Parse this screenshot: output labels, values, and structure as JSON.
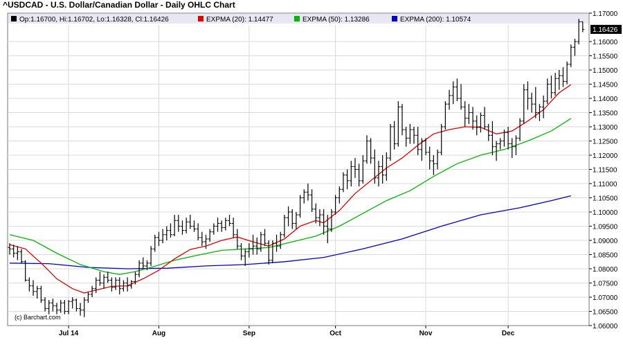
{
  "chart_data": {
    "type": "ohlc",
    "title": "^USDCAD - U.S. Dollar/Canadian Dollar - Daily OHLC Chart",
    "legend": {
      "ohlc": "Op:1.16700, Hi:1.16702, Lo:1.16328, Cl:1.16426",
      "ema20": "EXPMA (20): 1.14477",
      "ema50": "EXPMA (50): 1.13286",
      "ema200": "EXPMA (200): 1.10574"
    },
    "last_price_label": "1.16426",
    "watermark": "(c) Barchart.com",
    "ylim": [
      1.06,
      1.17
    ],
    "y_ticks": [
      "1.06000",
      "1.06500",
      "1.07000",
      "1.07500",
      "1.08000",
      "1.08500",
      "1.09000",
      "1.09500",
      "1.10000",
      "1.10500",
      "1.11000",
      "1.11500",
      "1.12000",
      "1.12500",
      "1.13000",
      "1.13500",
      "1.14000",
      "1.14500",
      "1.15000",
      "1.15500",
      "1.16000",
      "1.17000"
    ],
    "month_labels": [
      {
        "label": "Jul 14",
        "index": 15
      },
      {
        "label": "Aug",
        "index": 38
      },
      {
        "label": "Sep",
        "index": 61
      },
      {
        "label": "Oct",
        "index": 83
      },
      {
        "label": "Nov",
        "index": 106
      },
      {
        "label": "Dec",
        "index": 127
      }
    ],
    "bars": [
      [
        1.0875,
        1.089,
        1.085,
        1.087
      ],
      [
        1.087,
        1.0885,
        1.084,
        1.0855
      ],
      [
        1.0855,
        1.088,
        1.083,
        1.086
      ],
      [
        1.086,
        1.087,
        1.082,
        1.0825
      ],
      [
        1.0825,
        1.083,
        1.0755,
        1.076
      ],
      [
        1.076,
        1.077,
        1.072,
        1.074
      ],
      [
        1.074,
        1.076,
        1.0705,
        1.072
      ],
      [
        1.072,
        1.074,
        1.0695,
        1.073
      ],
      [
        1.073,
        1.074,
        1.068,
        1.069
      ],
      [
        1.069,
        1.07,
        1.065,
        1.066
      ],
      [
        1.066,
        1.069,
        1.064,
        1.068
      ],
      [
        1.068,
        1.0695,
        1.065,
        1.067
      ],
      [
        1.067,
        1.068,
        1.064,
        1.0655
      ],
      [
        1.0655,
        1.069,
        1.0645,
        1.068
      ],
      [
        1.068,
        1.069,
        1.064,
        1.065
      ],
      [
        1.065,
        1.069,
        1.064,
        1.0685
      ],
      [
        1.0685,
        1.07,
        1.066,
        1.069
      ],
      [
        1.069,
        1.0695,
        1.065,
        1.066
      ],
      [
        1.066,
        1.068,
        1.0635,
        1.0655
      ],
      [
        1.0655,
        1.07,
        1.063,
        1.069
      ],
      [
        1.069,
        1.072,
        1.068,
        1.071
      ],
      [
        1.071,
        1.074,
        1.07,
        1.073
      ],
      [
        1.073,
        1.077,
        1.0715,
        1.076
      ],
      [
        1.076,
        1.079,
        1.074,
        1.075
      ],
      [
        1.075,
        1.078,
        1.073,
        1.077
      ],
      [
        1.077,
        1.079,
        1.075,
        1.076
      ],
      [
        1.076,
        1.077,
        1.072,
        1.0735
      ],
      [
        1.0735,
        1.077,
        1.0725,
        1.076
      ],
      [
        1.076,
        1.077,
        1.071,
        1.073
      ],
      [
        1.073,
        1.076,
        1.072,
        1.075
      ],
      [
        1.075,
        1.077,
        1.072,
        1.074
      ],
      [
        1.074,
        1.076,
        1.073,
        1.0755
      ],
      [
        1.0755,
        1.079,
        1.0745,
        1.078
      ],
      [
        1.078,
        1.083,
        1.077,
        1.082
      ],
      [
        1.082,
        1.084,
        1.08,
        1.081
      ],
      [
        1.081,
        1.083,
        1.0795,
        1.082
      ],
      [
        1.082,
        1.088,
        1.081,
        1.087
      ],
      [
        1.087,
        1.092,
        1.086,
        1.091
      ],
      [
        1.091,
        1.093,
        1.088,
        1.09
      ],
      [
        1.09,
        1.094,
        1.089,
        1.092
      ],
      [
        1.092,
        1.095,
        1.09,
        1.0935
      ],
      [
        1.0935,
        1.096,
        1.091,
        1.092
      ],
      [
        1.092,
        1.099,
        1.0915,
        1.097
      ],
      [
        1.097,
        1.099,
        1.093,
        1.095
      ],
      [
        1.095,
        1.097,
        1.092,
        1.0935
      ],
      [
        1.0935,
        1.098,
        1.0925,
        1.0965
      ],
      [
        1.0965,
        1.099,
        1.094,
        1.095
      ],
      [
        1.095,
        1.097,
        1.093,
        1.094
      ],
      [
        1.094,
        1.096,
        1.09,
        1.091
      ],
      [
        1.091,
        1.093,
        1.088,
        1.0895
      ],
      [
        1.0895,
        1.092,
        1.087,
        1.0905
      ],
      [
        1.0905,
        1.094,
        1.0895,
        1.093
      ],
      [
        1.093,
        1.096,
        1.092,
        1.095
      ],
      [
        1.095,
        1.098,
        1.093,
        1.096
      ],
      [
        1.096,
        1.097,
        1.093,
        1.0945
      ],
      [
        1.0945,
        1.098,
        1.0935,
        1.097
      ],
      [
        1.097,
        1.099,
        1.095,
        1.096
      ],
      [
        1.096,
        1.098,
        1.091,
        1.092
      ],
      [
        1.092,
        1.094,
        1.087,
        1.088
      ],
      [
        1.088,
        1.089,
        1.083,
        1.0845
      ],
      [
        1.0845,
        1.087,
        1.081,
        1.086
      ],
      [
        1.086,
        1.089,
        1.084,
        1.087
      ],
      [
        1.087,
        1.092,
        1.085,
        1.088
      ],
      [
        1.088,
        1.091,
        1.085,
        1.087
      ],
      [
        1.087,
        1.093,
        1.086,
        1.092
      ],
      [
        1.092,
        1.094,
        1.088,
        1.089
      ],
      [
        1.089,
        1.09,
        1.0815,
        1.083
      ],
      [
        1.083,
        1.09,
        1.082,
        1.089
      ],
      [
        1.089,
        1.092,
        1.086,
        1.088
      ],
      [
        1.088,
        1.093,
        1.087,
        1.092
      ],
      [
        1.092,
        1.099,
        1.091,
        1.098
      ],
      [
        1.098,
        1.102,
        1.095,
        1.1
      ],
      [
        1.1,
        1.101,
        1.094,
        1.096
      ],
      [
        1.096,
        1.1,
        1.094,
        1.099
      ],
      [
        1.099,
        1.106,
        1.098,
        1.105
      ],
      [
        1.105,
        1.108,
        1.103,
        1.107
      ],
      [
        1.107,
        1.11,
        1.104,
        1.106
      ],
      [
        1.106,
        1.108,
        1.1,
        1.101
      ],
      [
        1.101,
        1.103,
        1.096,
        1.098
      ],
      [
        1.098,
        1.101,
        1.095,
        1.099
      ],
      [
        1.099,
        1.101,
        1.092,
        1.095
      ],
      [
        1.095,
        1.099,
        1.089,
        1.094
      ],
      [
        1.094,
        1.101,
        1.093,
        1.1
      ],
      [
        1.1,
        1.106,
        1.099,
        1.105
      ],
      [
        1.105,
        1.109,
        1.103,
        1.108
      ],
      [
        1.108,
        1.114,
        1.107,
        1.113
      ],
      [
        1.113,
        1.115,
        1.108,
        1.111
      ],
      [
        1.111,
        1.118,
        1.109,
        1.116
      ],
      [
        1.116,
        1.119,
        1.112,
        1.115
      ],
      [
        1.115,
        1.117,
        1.109,
        1.111
      ],
      [
        1.111,
        1.12,
        1.11,
        1.118
      ],
      [
        1.118,
        1.127,
        1.117,
        1.125
      ],
      [
        1.125,
        1.126,
        1.117,
        1.119
      ],
      [
        1.119,
        1.122,
        1.11,
        1.112
      ],
      [
        1.112,
        1.118,
        1.109,
        1.116
      ],
      [
        1.116,
        1.12,
        1.11,
        1.113
      ],
      [
        1.113,
        1.121,
        1.111,
        1.119
      ],
      [
        1.119,
        1.131,
        1.118,
        1.13
      ],
      [
        1.13,
        1.132,
        1.122,
        1.124
      ],
      [
        1.124,
        1.139,
        1.123,
        1.137
      ],
      [
        1.137,
        1.138,
        1.127,
        1.129
      ],
      [
        1.129,
        1.13,
        1.123,
        1.126
      ],
      [
        1.126,
        1.131,
        1.124,
        1.129
      ],
      [
        1.129,
        1.13,
        1.124,
        1.127
      ],
      [
        1.127,
        1.13,
        1.12,
        1.122
      ],
      [
        1.122,
        1.126,
        1.118,
        1.125
      ],
      [
        1.125,
        1.126,
        1.12,
        1.121
      ],
      [
        1.121,
        1.123,
        1.115,
        1.118
      ],
      [
        1.118,
        1.12,
        1.113,
        1.117
      ],
      [
        1.117,
        1.122,
        1.115,
        1.121
      ],
      [
        1.121,
        1.131,
        1.12,
        1.13
      ],
      [
        1.13,
        1.139,
        1.129,
        1.138
      ],
      [
        1.138,
        1.143,
        1.136,
        1.141
      ],
      [
        1.141,
        1.146,
        1.138,
        1.144
      ],
      [
        1.144,
        1.147,
        1.139,
        1.14
      ],
      [
        1.14,
        1.145,
        1.136,
        1.137
      ],
      [
        1.137,
        1.139,
        1.13,
        1.133
      ],
      [
        1.133,
        1.138,
        1.131,
        1.135
      ],
      [
        1.135,
        1.137,
        1.129,
        1.132
      ],
      [
        1.132,
        1.134,
        1.127,
        1.13
      ],
      [
        1.13,
        1.135,
        1.128,
        1.134
      ],
      [
        1.134,
        1.137,
        1.129,
        1.13
      ],
      [
        1.13,
        1.131,
        1.125,
        1.127
      ],
      [
        1.127,
        1.132,
        1.12,
        1.123
      ],
      [
        1.123,
        1.125,
        1.118,
        1.124
      ],
      [
        1.124,
        1.126,
        1.122,
        1.125
      ],
      [
        1.125,
        1.129,
        1.123,
        1.128
      ],
      [
        1.128,
        1.13,
        1.122,
        1.124
      ],
      [
        1.124,
        1.126,
        1.119,
        1.123
      ],
      [
        1.123,
        1.127,
        1.12,
        1.126
      ],
      [
        1.126,
        1.133,
        1.125,
        1.132
      ],
      [
        1.132,
        1.145,
        1.131,
        1.143
      ],
      [
        1.143,
        1.146,
        1.136,
        1.14
      ],
      [
        1.14,
        1.142,
        1.135,
        1.138
      ],
      [
        1.138,
        1.144,
        1.133,
        1.135
      ],
      [
        1.135,
        1.138,
        1.132,
        1.137
      ],
      [
        1.137,
        1.141,
        1.133,
        1.139
      ],
      [
        1.139,
        1.147,
        1.138,
        1.145
      ],
      [
        1.145,
        1.148,
        1.14,
        1.142
      ],
      [
        1.142,
        1.149,
        1.141,
        1.147
      ],
      [
        1.147,
        1.15,
        1.143,
        1.148
      ],
      [
        1.148,
        1.151,
        1.144,
        1.146
      ],
      [
        1.146,
        1.153,
        1.145,
        1.152
      ],
      [
        1.152,
        1.159,
        1.151,
        1.158
      ],
      [
        1.158,
        1.161,
        1.155,
        1.16
      ],
      [
        1.16,
        1.168,
        1.159,
        1.167
      ],
      [
        1.167,
        1.167,
        1.1633,
        1.1643
      ]
    ],
    "ema20": [
      [
        0,
        1.0885
      ],
      [
        4,
        1.087
      ],
      [
        8,
        1.082
      ],
      [
        12,
        1.0765
      ],
      [
        16,
        1.073
      ],
      [
        19,
        1.0715
      ],
      [
        22,
        1.0725
      ],
      [
        26,
        1.0738
      ],
      [
        30,
        1.074
      ],
      [
        34,
        1.0765
      ],
      [
        38,
        1.0795
      ],
      [
        42,
        1.0835
      ],
      [
        46,
        1.0868
      ],
      [
        50,
        1.088
      ],
      [
        54,
        1.09
      ],
      [
        58,
        1.0912
      ],
      [
        62,
        1.0895
      ],
      [
        66,
        1.088
      ],
      [
        70,
        1.0905
      ],
      [
        74,
        1.095
      ],
      [
        78,
        1.097
      ],
      [
        80,
        1.0962
      ],
      [
        84,
        1.1005
      ],
      [
        88,
        1.1065
      ],
      [
        92,
        1.111
      ],
      [
        96,
        1.1155
      ],
      [
        100,
        1.119
      ],
      [
        104,
        1.1235
      ],
      [
        108,
        1.1275
      ],
      [
        112,
        1.129
      ],
      [
        116,
        1.13
      ],
      [
        120,
        1.1298
      ],
      [
        124,
        1.1275
      ],
      [
        128,
        1.1285
      ],
      [
        132,
        1.132
      ],
      [
        136,
        1.136
      ],
      [
        140,
        1.142
      ],
      [
        143,
        1.1448
      ]
    ],
    "ema50": [
      [
        0,
        1.092
      ],
      [
        6,
        1.09
      ],
      [
        12,
        1.0855
      ],
      [
        18,
        1.0815
      ],
      [
        24,
        1.079
      ],
      [
        28,
        1.078
      ],
      [
        32,
        1.079
      ],
      [
        36,
        1.0805
      ],
      [
        42,
        1.083
      ],
      [
        48,
        1.0848
      ],
      [
        54,
        1.0865
      ],
      [
        60,
        1.087
      ],
      [
        66,
        1.0875
      ],
      [
        72,
        1.0895
      ],
      [
        78,
        1.0915
      ],
      [
        84,
        1.095
      ],
      [
        90,
        1.0995
      ],
      [
        96,
        1.104
      ],
      [
        102,
        1.1075
      ],
      [
        108,
        1.1125
      ],
      [
        114,
        1.117
      ],
      [
        120,
        1.12
      ],
      [
        126,
        1.122
      ],
      [
        132,
        1.125
      ],
      [
        138,
        1.1285
      ],
      [
        143,
        1.1329
      ]
    ],
    "ema200": [
      [
        0,
        1.082
      ],
      [
        10,
        1.0818
      ],
      [
        20,
        1.0805
      ],
      [
        30,
        1.08
      ],
      [
        40,
        1.0802
      ],
      [
        50,
        1.081
      ],
      [
        60,
        1.0815
      ],
      [
        70,
        1.0825
      ],
      [
        80,
        1.084
      ],
      [
        90,
        1.087
      ],
      [
        100,
        1.0905
      ],
      [
        110,
        1.095
      ],
      [
        120,
        1.099
      ],
      [
        130,
        1.1015
      ],
      [
        138,
        1.104
      ],
      [
        143,
        1.1057
      ]
    ],
    "colors": {
      "ema20": "#e00000",
      "ema50": "#00b800",
      "ema200": "#0000cc",
      "bars": "#000000",
      "grid": "#d9d9d9",
      "legend_bg": "#e8e8f5"
    },
    "grid": true
  }
}
